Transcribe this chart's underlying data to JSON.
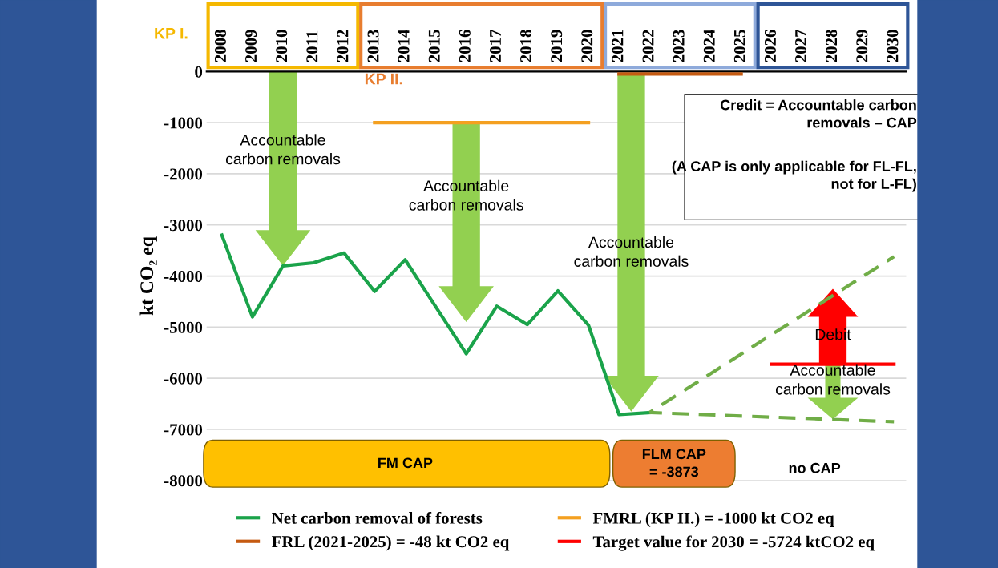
{
  "chart_data": {
    "type": "line",
    "ylabel": "kt CO₂ eq",
    "x": [
      2008,
      2009,
      2010,
      2011,
      2012,
      2013,
      2014,
      2015,
      2016,
      2017,
      2018,
      2019,
      2020,
      2021,
      2022
    ],
    "xlim": [
      2007.5,
      2030.4
    ],
    "xticks": [
      2008,
      2009,
      2010,
      2011,
      2012,
      2013,
      2014,
      2015,
      2016,
      2017,
      2018,
      2019,
      2020,
      2021,
      2022,
      2023,
      2024,
      2025,
      2026,
      2027,
      2028,
      2029,
      2030
    ],
    "ylim": [
      -8000,
      0
    ],
    "yticks": [
      -8000,
      -7000,
      -6000,
      -5000,
      -4000,
      -3000,
      -2000,
      -1000,
      0
    ],
    "series": [
      {
        "name": "Net carbon removal of forests",
        "color": "#1aa34a",
        "values": [
          -3200,
          -4800,
          -3800,
          -3740,
          -3550,
          -4300,
          -3680,
          -4600,
          -5520,
          -4590,
          -4950,
          -4290,
          -4960,
          -6710,
          -6670
        ]
      },
      {
        "name": "FMRL (KP II.) = -1000 kt CO2 eq",
        "color": "#f4a020",
        "x": [
          2013,
          2020
        ],
        "values": [
          -1000,
          -1000
        ]
      },
      {
        "name": "FRL (2021-2025) = -48 kt CO2 eq",
        "color": "#c55a11",
        "x": [
          2021,
          2025
        ],
        "values": [
          -48,
          -48
        ]
      },
      {
        "name": "Target value for 2030 = -5724 ktCO2 eq",
        "color": "#ff0000",
        "x": [
          2026,
          2030
        ],
        "values": [
          -5724,
          -5724
        ]
      },
      {
        "color": "#70ad47",
        "line_style": "dashed",
        "x": [
          2022,
          2030
        ],
        "values": [
          -6670,
          -3620
        ]
      },
      {
        "color": "#70ad47",
        "line_style": "dashed",
        "x": [
          2022,
          2030
        ],
        "values": [
          -6670,
          -6850
        ]
      }
    ],
    "annotations": [
      "KP I.",
      "KP II.",
      "Accountable carbon removals",
      "Accountable carbon removals",
      "Accountable carbon removals",
      {
        "text": "Accountable carbon removals",
        "x": 2028,
        "y": -5724
      },
      "Debit",
      "Credit = Accountable carbon removals – CAP",
      "(A CAP is only applicable for FL-FL, not for L-FL)",
      "FM CAP",
      "FLM CAP = -3873",
      "no CAP"
    ],
    "grid": "y",
    "legend": "bottom",
    "marker": "none",
    "line_style": "solid"
  }
}
